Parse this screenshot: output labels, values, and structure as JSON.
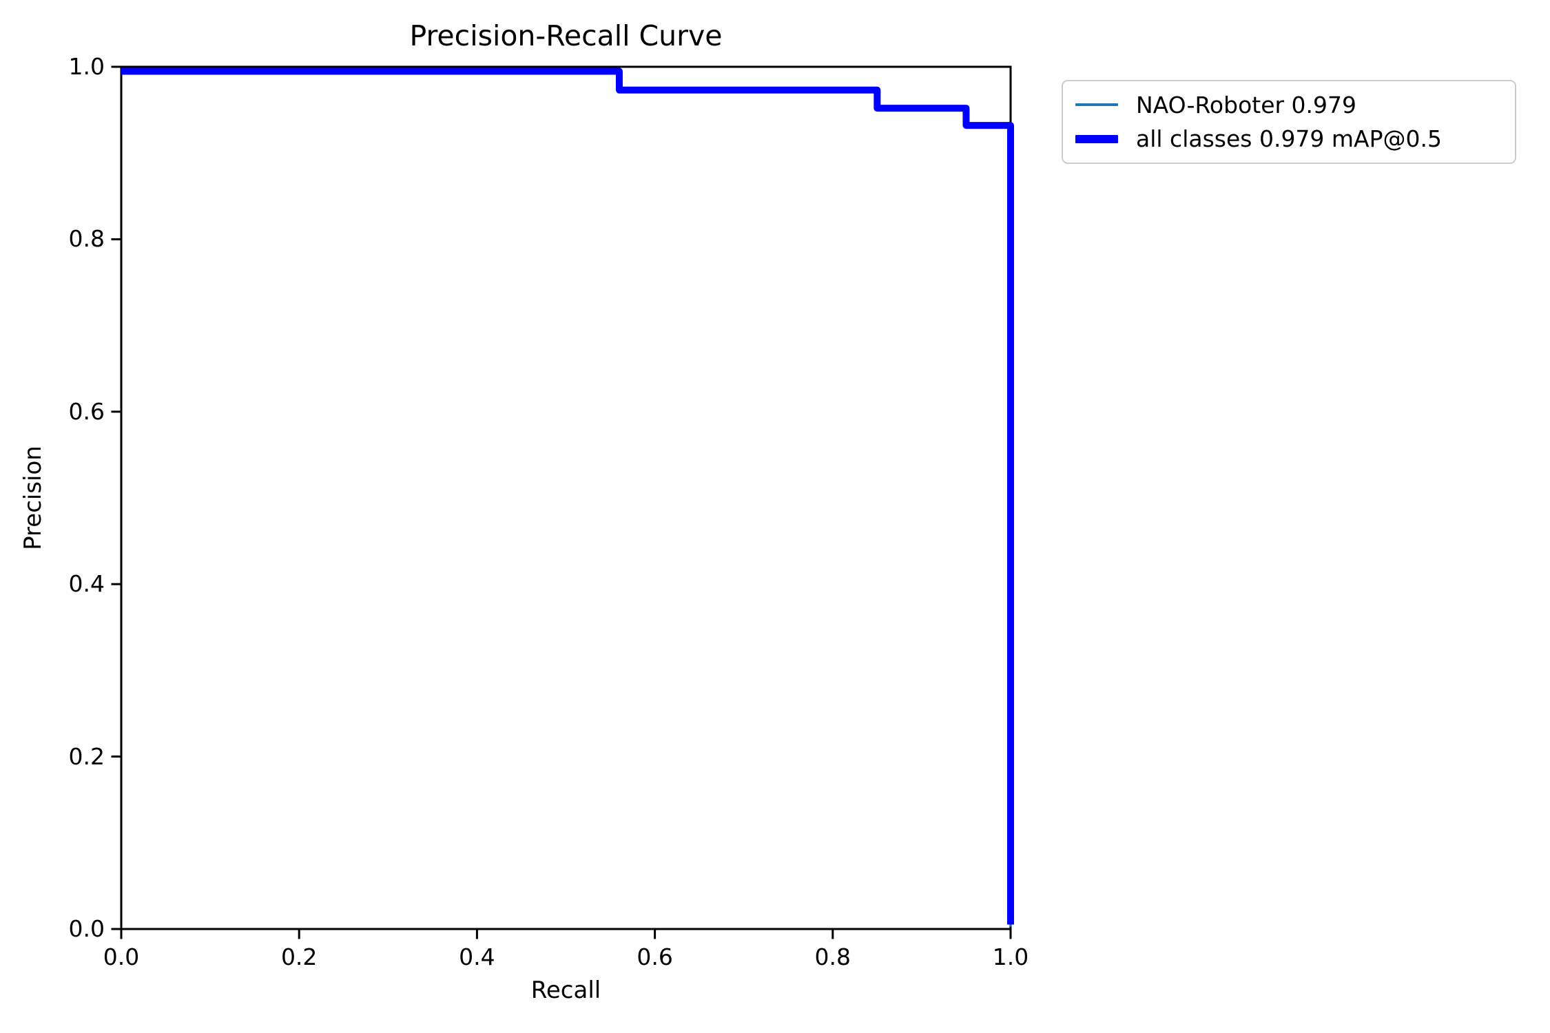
{
  "chart_data": {
    "type": "line",
    "title": "Precision-Recall Curve",
    "xlabel": "Recall",
    "ylabel": "Precision",
    "xlim": [
      0.0,
      1.0
    ],
    "ylim": [
      0.0,
      1.0
    ],
    "x_ticks": [
      0.0,
      0.2,
      0.4,
      0.6,
      0.8,
      1.0
    ],
    "y_ticks": [
      0.0,
      0.2,
      0.4,
      0.6,
      0.8,
      1.0
    ],
    "grid": false,
    "curve_style": "step",
    "legend_position": "upper right, outside axes",
    "series": [
      {
        "name": "NAO-Roboter 0.979",
        "color": "#1f77b4",
        "linewidth": 3.5,
        "points": [
          [
            0.0,
            1.0
          ],
          [
            0.56,
            1.0
          ],
          [
            0.56,
            0.973
          ],
          [
            0.85,
            0.973
          ],
          [
            0.85,
            0.952
          ],
          [
            0.95,
            0.952
          ],
          [
            0.95,
            0.932
          ],
          [
            1.0,
            0.932
          ],
          [
            1.0,
            0.0
          ]
        ]
      },
      {
        "name": "all classes 0.979 mAP@0.5",
        "color": "#0000ff",
        "linewidth": 10,
        "points": [
          [
            0.0,
            1.0
          ],
          [
            0.56,
            1.0
          ],
          [
            0.56,
            0.973
          ],
          [
            0.85,
            0.973
          ],
          [
            0.85,
            0.952
          ],
          [
            0.95,
            0.952
          ],
          [
            0.95,
            0.932
          ],
          [
            1.0,
            0.932
          ],
          [
            1.0,
            0.0
          ]
        ]
      }
    ]
  },
  "axes": {
    "x_tick_labels": [
      "0.0",
      "0.2",
      "0.4",
      "0.6",
      "0.8",
      "1.0"
    ],
    "y_tick_labels": [
      "0.0",
      "0.2",
      "0.4",
      "0.6",
      "0.8",
      "1.0"
    ],
    "axis_color": "#000000"
  }
}
